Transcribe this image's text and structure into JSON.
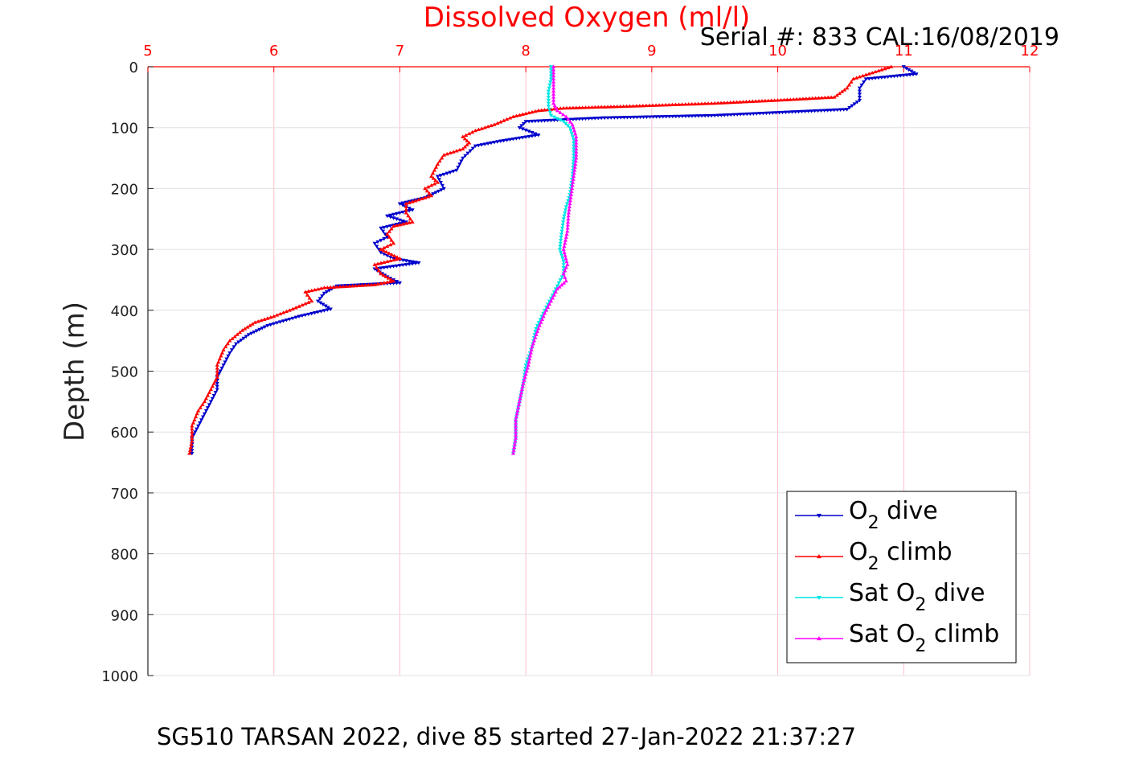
{
  "chart_data": {
    "type": "line",
    "title": "Dissolved Oxygen (ml/l)",
    "subtitle": "Serial #: 833  CAL:16/08/2019",
    "caption": "SG510 TARSAN 2022, dive 85 started 27-Jan-2022 21:37:27",
    "xlabel": "Dissolved Oxygen (ml/l)",
    "ylabel": "Depth (m)",
    "xlim": [
      5,
      12
    ],
    "ylim": [
      0,
      1000
    ],
    "y_reversed": true,
    "x_axis_position": "top",
    "x_ticks": [
      5,
      6,
      7,
      8,
      9,
      10,
      11,
      12
    ],
    "y_ticks": [
      0,
      100,
      200,
      300,
      400,
      500,
      600,
      700,
      800,
      900,
      1000
    ],
    "grid": true,
    "legend_position": "bottom-right",
    "colors": {
      "title": "#ff0000",
      "x_ticks": "#ff0000",
      "grid": "#ffc0cb"
    },
    "series": [
      {
        "name": "O2 dive",
        "legend": {
          "pre": "O",
          "sub": "2",
          "post": " dive"
        },
        "color": "#0000cc",
        "marker": "triangle-down",
        "points": [
          [
            11.0,
            0
          ],
          [
            11.1,
            12
          ],
          [
            10.7,
            20
          ],
          [
            10.65,
            35
          ],
          [
            10.65,
            55
          ],
          [
            10.55,
            70
          ],
          [
            9.5,
            80
          ],
          [
            8.6,
            84
          ],
          [
            8.0,
            90
          ],
          [
            7.95,
            100
          ],
          [
            8.1,
            112
          ],
          [
            7.8,
            122
          ],
          [
            7.6,
            130
          ],
          [
            7.5,
            150
          ],
          [
            7.45,
            170
          ],
          [
            7.3,
            180
          ],
          [
            7.35,
            200
          ],
          [
            7.2,
            215
          ],
          [
            7.0,
            225
          ],
          [
            7.1,
            235
          ],
          [
            6.9,
            245
          ],
          [
            7.05,
            255
          ],
          [
            6.85,
            265
          ],
          [
            6.9,
            280
          ],
          [
            6.8,
            290
          ],
          [
            6.85,
            305
          ],
          [
            6.95,
            315
          ],
          [
            7.15,
            322
          ],
          [
            6.8,
            332
          ],
          [
            6.9,
            345
          ],
          [
            7.0,
            355
          ],
          [
            6.5,
            360
          ],
          [
            6.4,
            372
          ],
          [
            6.35,
            385
          ],
          [
            6.45,
            398
          ],
          [
            6.2,
            410
          ],
          [
            5.95,
            425
          ],
          [
            5.8,
            440
          ],
          [
            5.7,
            455
          ],
          [
            5.65,
            470
          ],
          [
            5.6,
            490
          ],
          [
            5.55,
            510
          ],
          [
            5.55,
            530
          ],
          [
            5.5,
            550
          ],
          [
            5.45,
            570
          ],
          [
            5.4,
            590
          ],
          [
            5.35,
            610
          ],
          [
            5.35,
            635
          ]
        ]
      },
      {
        "name": "O2 climb",
        "legend": {
          "pre": "O",
          "sub": "2",
          "post": " climb"
        },
        "color": "#ff0000",
        "marker": "triangle-up",
        "points": [
          [
            10.9,
            0
          ],
          [
            10.75,
            10
          ],
          [
            10.6,
            20
          ],
          [
            10.55,
            35
          ],
          [
            10.45,
            50
          ],
          [
            10.0,
            55
          ],
          [
            9.5,
            60
          ],
          [
            8.8,
            65
          ],
          [
            8.3,
            68
          ],
          [
            8.1,
            72
          ],
          [
            7.9,
            82
          ],
          [
            7.75,
            95
          ],
          [
            7.6,
            105
          ],
          [
            7.5,
            115
          ],
          [
            7.55,
            125
          ],
          [
            7.5,
            135
          ],
          [
            7.35,
            145
          ],
          [
            7.3,
            160
          ],
          [
            7.25,
            180
          ],
          [
            7.3,
            190
          ],
          [
            7.2,
            200
          ],
          [
            7.25,
            212
          ],
          [
            7.05,
            225
          ],
          [
            7.05,
            240
          ],
          [
            7.1,
            255
          ],
          [
            6.95,
            262
          ],
          [
            6.9,
            275
          ],
          [
            6.95,
            290
          ],
          [
            6.85,
            300
          ],
          [
            7.0,
            315
          ],
          [
            6.8,
            325
          ],
          [
            6.85,
            340
          ],
          [
            6.95,
            352
          ],
          [
            6.8,
            358
          ],
          [
            6.4,
            363
          ],
          [
            6.25,
            370
          ],
          [
            6.3,
            385
          ],
          [
            6.15,
            398
          ],
          [
            6.0,
            410
          ],
          [
            5.85,
            420
          ],
          [
            5.75,
            433
          ],
          [
            5.65,
            450
          ],
          [
            5.6,
            465
          ],
          [
            5.55,
            490
          ],
          [
            5.55,
            510
          ],
          [
            5.5,
            530
          ],
          [
            5.45,
            550
          ],
          [
            5.4,
            565
          ],
          [
            5.35,
            590
          ],
          [
            5.35,
            615
          ],
          [
            5.33,
            635
          ]
        ]
      },
      {
        "name": "Sat O2 dive",
        "legend": {
          "pre": "Sat O",
          "sub": "2",
          "post": " dive"
        },
        "color": "#00e5e5",
        "marker": "triangle-down",
        "points": [
          [
            8.2,
            0
          ],
          [
            8.2,
            20
          ],
          [
            8.18,
            40
          ],
          [
            8.18,
            65
          ],
          [
            8.2,
            80
          ],
          [
            8.3,
            90
          ],
          [
            8.35,
            100
          ],
          [
            8.38,
            120
          ],
          [
            8.38,
            150
          ],
          [
            8.37,
            180
          ],
          [
            8.35,
            210
          ],
          [
            8.32,
            230
          ],
          [
            8.3,
            250
          ],
          [
            8.28,
            280
          ],
          [
            8.27,
            300
          ],
          [
            8.3,
            320
          ],
          [
            8.3,
            340
          ],
          [
            8.25,
            360
          ],
          [
            8.2,
            380
          ],
          [
            8.15,
            400
          ],
          [
            8.08,
            430
          ],
          [
            8.05,
            460
          ],
          [
            8.0,
            490
          ],
          [
            7.98,
            520
          ],
          [
            7.95,
            550
          ],
          [
            7.92,
            580
          ],
          [
            7.92,
            610
          ],
          [
            7.9,
            635
          ]
        ]
      },
      {
        "name": "Sat O2 climb",
        "legend": {
          "pre": "Sat O",
          "sub": "2",
          "post": " climb"
        },
        "color": "#ff00ff",
        "marker": "triangle-up",
        "points": [
          [
            8.22,
            0
          ],
          [
            8.22,
            20
          ],
          [
            8.22,
            40
          ],
          [
            8.22,
            60
          ],
          [
            8.25,
            72
          ],
          [
            8.32,
            82
          ],
          [
            8.37,
            95
          ],
          [
            8.4,
            115
          ],
          [
            8.4,
            150
          ],
          [
            8.38,
            180
          ],
          [
            8.36,
            210
          ],
          [
            8.34,
            240
          ],
          [
            8.33,
            270
          ],
          [
            8.3,
            300
          ],
          [
            8.33,
            325
          ],
          [
            8.3,
            340
          ],
          [
            8.32,
            352
          ],
          [
            8.25,
            365
          ],
          [
            8.2,
            385
          ],
          [
            8.15,
            405
          ],
          [
            8.1,
            430
          ],
          [
            8.05,
            460
          ],
          [
            8.02,
            490
          ],
          [
            7.98,
            520
          ],
          [
            7.95,
            550
          ],
          [
            7.92,
            580
          ],
          [
            7.92,
            610
          ],
          [
            7.9,
            635
          ]
        ]
      }
    ]
  }
}
